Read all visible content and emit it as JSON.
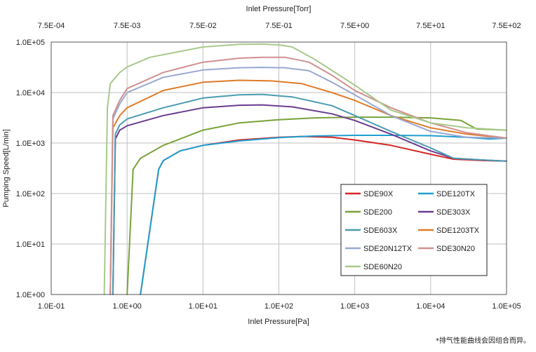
{
  "chart_data": {
    "type": "line",
    "title": "",
    "xlabel": "Inlet Pressure[Pa]",
    "x2label": "Inlet Pressure[Torr]",
    "ylabel": "Pumping Speed[L/min]",
    "xscale": "log",
    "yscale": "log",
    "xlim": [
      0.1,
      100000
    ],
    "ylim": [
      1,
      100000
    ],
    "grid": true,
    "legend_position": "lower-right",
    "x_ticks": [
      {
        "value": 0.1,
        "label": "1.0E-01"
      },
      {
        "value": 1,
        "label": "1.0E+00"
      },
      {
        "value": 10,
        "label": "1.0E+01"
      },
      {
        "value": 100,
        "label": "1.0E+02"
      },
      {
        "value": 1000,
        "label": "1.0E+03"
      },
      {
        "value": 10000,
        "label": "1.0E+04"
      },
      {
        "value": 100000,
        "label": "1.0E+05"
      }
    ],
    "x2_ticks": [
      "7.5E-04",
      "7.5E-03",
      "7.5E-02",
      "7.5E-01",
      "7.5E+00",
      "7.5E+01",
      "7.5E+02"
    ],
    "y_ticks": [
      {
        "value": 1,
        "label": "1.0E+00"
      },
      {
        "value": 10,
        "label": "1.0E+01"
      },
      {
        "value": 100,
        "label": "1.0E+02"
      },
      {
        "value": 1000,
        "label": "1.0E+03"
      },
      {
        "value": 10000,
        "label": "1.0E+04"
      },
      {
        "value": 100000,
        "label": "1.0E+05"
      }
    ],
    "series": [
      {
        "name": "SDE90X",
        "color": "#d62728",
        "points": [
          [
            1.5,
            1
          ],
          [
            2.6,
            300
          ],
          [
            3,
            450
          ],
          [
            5,
            700
          ],
          [
            10,
            900
          ],
          [
            30,
            1150
          ],
          [
            100,
            1300
          ],
          [
            200,
            1350
          ],
          [
            500,
            1300
          ],
          [
            1000,
            1150
          ],
          [
            3000,
            900
          ],
          [
            10000,
            600
          ],
          [
            20000,
            480
          ],
          [
            50000,
            450
          ],
          [
            100000,
            440
          ]
        ]
      },
      {
        "name": "SDE120TX",
        "color": "#1f9fd0",
        "points": [
          [
            1.5,
            1
          ],
          [
            2.6,
            300
          ],
          [
            3,
            450
          ],
          [
            5,
            700
          ],
          [
            10,
            900
          ],
          [
            30,
            1100
          ],
          [
            100,
            1280
          ],
          [
            300,
            1380
          ],
          [
            1000,
            1420
          ],
          [
            3000,
            1420
          ],
          [
            10000,
            1400
          ],
          [
            30000,
            1300
          ],
          [
            60000,
            1200
          ],
          [
            100000,
            1250
          ]
        ]
      },
      {
        "name": "SDE200",
        "color": "#79a23a",
        "points": [
          [
            1,
            1
          ],
          [
            1.2,
            300
          ],
          [
            1.5,
            500
          ],
          [
            3,
            900
          ],
          [
            10,
            1800
          ],
          [
            30,
            2500
          ],
          [
            100,
            2900
          ],
          [
            300,
            3150
          ],
          [
            1000,
            3250
          ],
          [
            3000,
            3250
          ],
          [
            10000,
            3150
          ],
          [
            25000,
            2800
          ],
          [
            40000,
            1900
          ],
          [
            100000,
            1800
          ]
        ]
      },
      {
        "name": "SDE303X",
        "color": "#6a3d8f",
        "points": [
          [
            0.65,
            1
          ],
          [
            0.7,
            1200
          ],
          [
            0.8,
            1800
          ],
          [
            1,
            2200
          ],
          [
            3,
            3500
          ],
          [
            10,
            5000
          ],
          [
            30,
            5600
          ],
          [
            60,
            5700
          ],
          [
            150,
            5200
          ],
          [
            500,
            3800
          ],
          [
            1000,
            2800
          ],
          [
            3000,
            1500
          ],
          [
            10000,
            700
          ],
          [
            20000,
            500
          ],
          [
            50000,
            460
          ],
          [
            100000,
            440
          ]
        ]
      },
      {
        "name": "SDE603X",
        "color": "#4a9bb0",
        "points": [
          [
            0.65,
            1
          ],
          [
            0.7,
            1500
          ],
          [
            0.8,
            2300
          ],
          [
            1,
            3000
          ],
          [
            3,
            5000
          ],
          [
            10,
            7800
          ],
          [
            30,
            9000
          ],
          [
            60,
            9200
          ],
          [
            150,
            8200
          ],
          [
            500,
            5500
          ],
          [
            1000,
            3500
          ],
          [
            3000,
            1700
          ],
          [
            10000,
            800
          ],
          [
            20000,
            500
          ],
          [
            50000,
            460
          ],
          [
            100000,
            440
          ]
        ]
      },
      {
        "name": "SDE1203TX",
        "color": "#e07b28",
        "points": [
          [
            0.6,
            1
          ],
          [
            0.65,
            2000
          ],
          [
            0.8,
            3500
          ],
          [
            1,
            5000
          ],
          [
            3,
            11000
          ],
          [
            10,
            16000
          ],
          [
            30,
            17500
          ],
          [
            80,
            17000
          ],
          [
            200,
            15000
          ],
          [
            500,
            10000
          ],
          [
            1000,
            7000
          ],
          [
            3000,
            3500
          ],
          [
            10000,
            2000
          ],
          [
            30000,
            1500
          ],
          [
            100000,
            1250
          ]
        ]
      },
      {
        "name": "SDE20N12TX",
        "color": "#98a8d0",
        "points": [
          [
            0.6,
            1
          ],
          [
            0.65,
            3000
          ],
          [
            0.8,
            6000
          ],
          [
            1,
            10000
          ],
          [
            3,
            20000
          ],
          [
            10,
            28000
          ],
          [
            30,
            31000
          ],
          [
            60,
            31500
          ],
          [
            120,
            31000
          ],
          [
            250,
            27000
          ],
          [
            500,
            16000
          ],
          [
            1000,
            9000
          ],
          [
            3000,
            3500
          ],
          [
            10000,
            1700
          ],
          [
            30000,
            1300
          ],
          [
            100000,
            1250
          ]
        ]
      },
      {
        "name": "SDE30N20",
        "color": "#d09090",
        "points": [
          [
            0.6,
            1
          ],
          [
            0.65,
            3500
          ],
          [
            0.8,
            7000
          ],
          [
            1,
            12000
          ],
          [
            3,
            25000
          ],
          [
            10,
            40000
          ],
          [
            30,
            48000
          ],
          [
            60,
            50000
          ],
          [
            120,
            50000
          ],
          [
            250,
            40000
          ],
          [
            500,
            22000
          ],
          [
            1000,
            11000
          ],
          [
            3000,
            5000
          ],
          [
            10000,
            2500
          ],
          [
            30000,
            1600
          ],
          [
            100000,
            1250
          ]
        ]
      },
      {
        "name": "SDE60N20",
        "color": "#a9c98c",
        "points": [
          [
            0.5,
            1
          ],
          [
            0.55,
            5000
          ],
          [
            0.6,
            15000
          ],
          [
            0.8,
            25000
          ],
          [
            1,
            32000
          ],
          [
            2,
            50000
          ],
          [
            10,
            80000
          ],
          [
            30,
            90000
          ],
          [
            60,
            91000
          ],
          [
            100,
            88000
          ],
          [
            150,
            80000
          ],
          [
            300,
            45000
          ],
          [
            1000,
            14000
          ],
          [
            3000,
            4500
          ],
          [
            10000,
            2500
          ],
          [
            30000,
            2000
          ],
          [
            100000,
            1800
          ]
        ]
      }
    ]
  },
  "footnote": "*排气性能曲线会因组合而异。"
}
